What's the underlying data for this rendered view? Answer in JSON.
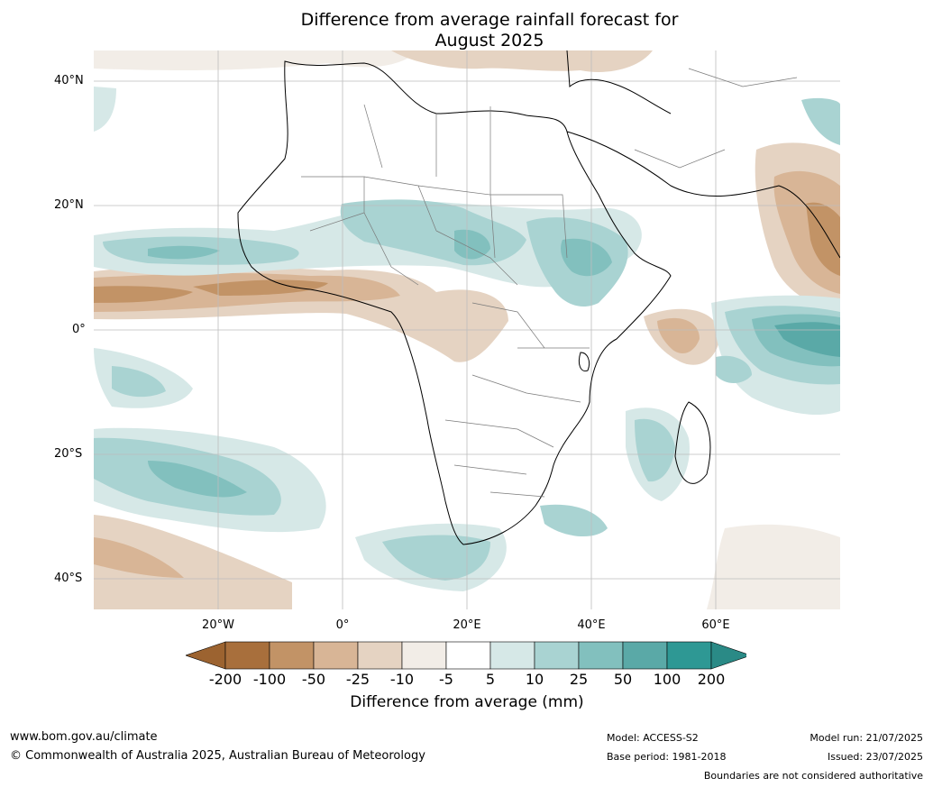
{
  "title": {
    "line1": "Difference from average rainfall forecast for",
    "line2": "August 2025"
  },
  "axes": {
    "lat_labels": [
      "40°N",
      "20°N",
      "0°",
      "20°S",
      "40°S"
    ],
    "lon_labels": [
      "20°W",
      "0°",
      "20°E",
      "40°E",
      "60°E"
    ]
  },
  "colorbar": {
    "title": "Difference from average (mm)",
    "labels": [
      "-200",
      "-100",
      "-50",
      "-25",
      "-10",
      "-5",
      "5",
      "10",
      "25",
      "50",
      "100",
      "200"
    ],
    "colors": [
      "#a86f3c",
      "#c29366",
      "#d8b596",
      "#e5d3c2",
      "#f2ede7",
      "#ffffff",
      "#d6e8e7",
      "#a9d3d2",
      "#82c0be",
      "#5aa9a7",
      "#2e9894"
    ],
    "extend_low_color": "#9c6330",
    "extend_high_color": "#2a8a86"
  },
  "footer": {
    "url": "www.bom.gov.au/climate",
    "copyright": "© Commonwealth of Australia 2025, Australian Bureau of Meteorology",
    "model": "Model: ACCESS-S2",
    "base_period": "Base period: 1981-2018",
    "model_run": "Model run: 21/07/2025",
    "issued": "Issued: 23/07/2025",
    "boundaries": "Boundaries are not considered authoritative"
  }
}
